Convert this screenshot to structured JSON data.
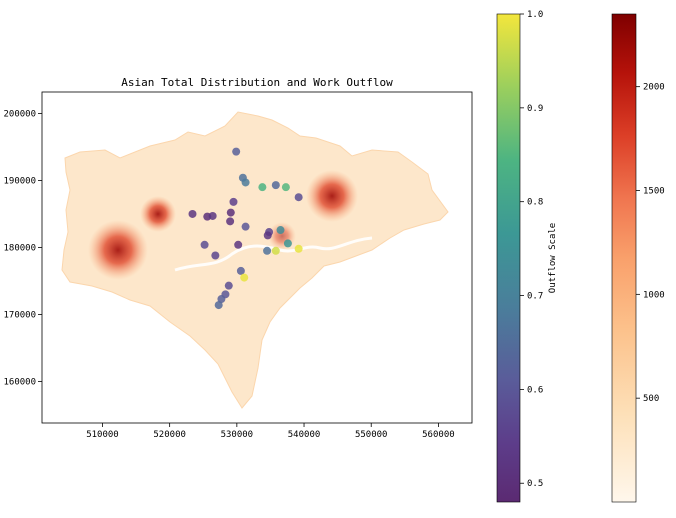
{
  "chart_data": {
    "type": "scatter",
    "title": "Asian Total Distribution and Work Outflow",
    "xlabel": "",
    "ylabel": "",
    "xlim": [
      501000,
      565000
    ],
    "ylim": [
      153800,
      203200
    ],
    "x_ticks": [
      510000,
      520000,
      530000,
      540000,
      550000,
      560000
    ],
    "x_tick_labels": [
      "510000",
      "520000",
      "530000",
      "540000",
      "550000",
      "560000"
    ],
    "y_ticks": [
      160000,
      170000,
      180000,
      190000,
      200000
    ],
    "y_tick_labels": [
      "160000",
      "170000",
      "180000",
      "190000",
      "200000"
    ],
    "grid": false,
    "map_layer": {
      "colormap": "OrRd",
      "range": [
        0,
        2350
      ],
      "colorbar_ticks": [
        500,
        1000,
        1500,
        2000
      ],
      "colorbar_tick_labels": [
        "500",
        "1000",
        "1500",
        "2000"
      ],
      "hotspots": [
        {
          "x": 511500,
          "y": 178500,
          "value": 2000
        },
        {
          "x": 518500,
          "y": 184500,
          "value": 1800
        },
        {
          "x": 545000,
          "y": 186000,
          "value": 2100
        },
        {
          "x": 536500,
          "y": 182000,
          "value": 1300
        }
      ]
    },
    "outflow_colorbar": {
      "colormap": "viridis",
      "range": [
        0.48,
        1.0
      ],
      "label": "Outflow Scale",
      "ticks": [
        0.5,
        0.6,
        0.7,
        0.8,
        0.9,
        1.0
      ],
      "tick_labels": [
        "0.5",
        "0.6",
        "0.7",
        "0.8",
        "0.9",
        "1.0"
      ]
    },
    "points": [
      {
        "x": 529900,
        "y": 194300,
        "v": 0.62
      },
      {
        "x": 530900,
        "y": 190400,
        "v": 0.66
      },
      {
        "x": 531300,
        "y": 189700,
        "v": 0.68
      },
      {
        "x": 533800,
        "y": 189000,
        "v": 0.84
      },
      {
        "x": 535800,
        "y": 189300,
        "v": 0.64
      },
      {
        "x": 537300,
        "y": 189000,
        "v": 0.85
      },
      {
        "x": 539200,
        "y": 187500,
        "v": 0.58
      },
      {
        "x": 523400,
        "y": 185000,
        "v": 0.52
      },
      {
        "x": 525600,
        "y": 184600,
        "v": 0.5
      },
      {
        "x": 526400,
        "y": 184700,
        "v": 0.52
      },
      {
        "x": 529500,
        "y": 186800,
        "v": 0.55
      },
      {
        "x": 529100,
        "y": 185200,
        "v": 0.5
      },
      {
        "x": 529000,
        "y": 183900,
        "v": 0.51
      },
      {
        "x": 531300,
        "y": 183100,
        "v": 0.6
      },
      {
        "x": 534800,
        "y": 182300,
        "v": 0.56
      },
      {
        "x": 534600,
        "y": 181800,
        "v": 0.52
      },
      {
        "x": 536500,
        "y": 182600,
        "v": 0.73
      },
      {
        "x": 525200,
        "y": 180400,
        "v": 0.58
      },
      {
        "x": 530200,
        "y": 180400,
        "v": 0.52
      },
      {
        "x": 537600,
        "y": 180600,
        "v": 0.76
      },
      {
        "x": 534500,
        "y": 179500,
        "v": 0.66
      },
      {
        "x": 535800,
        "y": 179500,
        "v": 0.97
      },
      {
        "x": 539200,
        "y": 179800,
        "v": 0.99
      },
      {
        "x": 526800,
        "y": 178800,
        "v": 0.56
      },
      {
        "x": 530600,
        "y": 176500,
        "v": 0.62
      },
      {
        "x": 531100,
        "y": 175500,
        "v": 0.99
      },
      {
        "x": 528800,
        "y": 174300,
        "v": 0.58
      },
      {
        "x": 528300,
        "y": 173000,
        "v": 0.6
      },
      {
        "x": 527700,
        "y": 172300,
        "v": 0.62
      },
      {
        "x": 527300,
        "y": 171400,
        "v": 0.64
      }
    ]
  }
}
